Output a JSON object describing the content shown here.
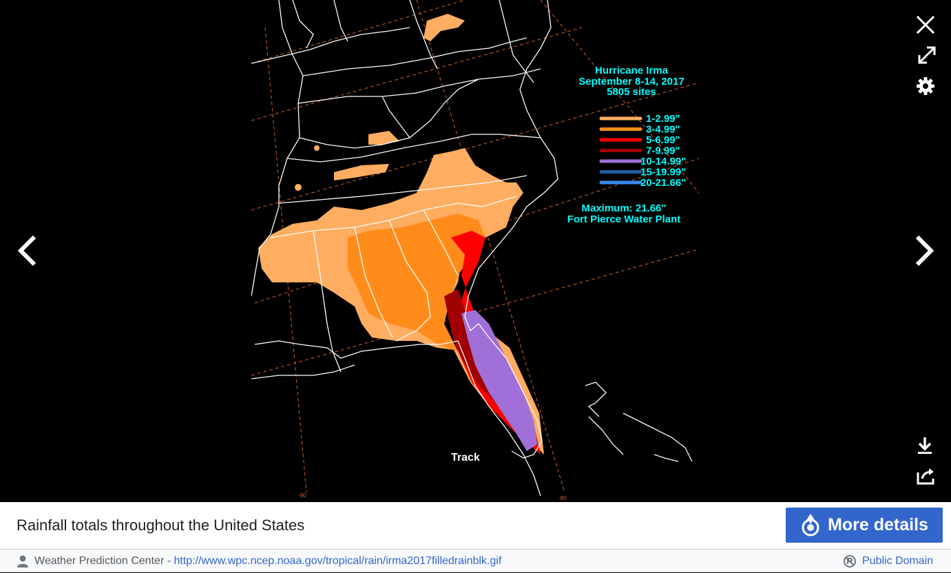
{
  "viewer": {
    "controls": {
      "close_icon": "close-icon",
      "fullscreen_icon": "expand-icon",
      "settings_icon": "gear-icon",
      "prev_icon": "chevron-left-icon",
      "next_icon": "chevron-right-icon",
      "download_icon": "download-icon",
      "share_icon": "share-icon"
    },
    "image": {
      "title_lines": [
        "Hurricane Irma",
        "September 8-14, 2017",
        "5805 sites"
      ],
      "legend": [
        {
          "label": "1-2.99\"",
          "color": "#ffad60"
        },
        {
          "label": "3-4.99\"",
          "color": "#ff8c1a"
        },
        {
          "label": "5-6.99\"",
          "color": "#ff0000"
        },
        {
          "label": "7-9.99\"",
          "color": "#a00000"
        },
        {
          "label": "10-14.99\"",
          "color": "#a070d8"
        },
        {
          "label": "15-19.99\"",
          "color": "#1f5fa0"
        },
        {
          "label": "20-21.66\"",
          "color": "#3a8af0"
        }
      ],
      "maximum_line1": "Maximum: 21.66\"",
      "maximum_line2": "Fort Pierce Water Plant",
      "track_label": "Track",
      "lon_label_left": "-90",
      "lon_label_right": "-80",
      "text_color": "#00ffff"
    }
  },
  "caption": {
    "text": "Rainfall totals throughout the United States",
    "more_details_label": "More details",
    "accent_color": "#3366cc"
  },
  "footer": {
    "author_icon": "user-icon",
    "author": "Weather Prediction Center",
    "separator": " - ",
    "source_url": "http://www.wpc.ncep.noaa.gov/tropical/rain/irma2017filledrainblk.gif",
    "license_icon": "public-domain-icon",
    "license": "Public Domain"
  }
}
